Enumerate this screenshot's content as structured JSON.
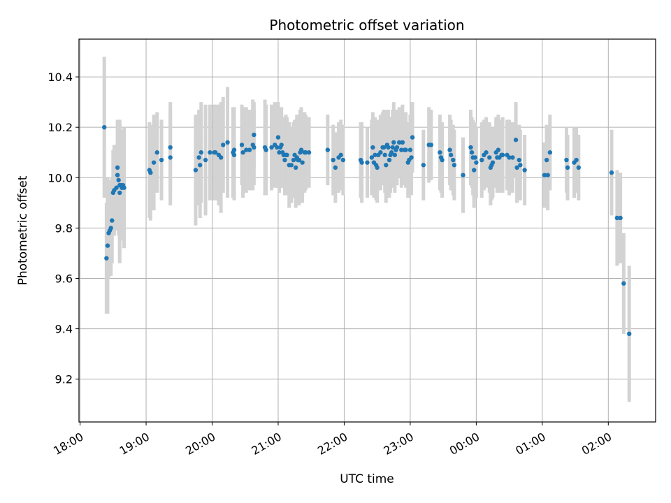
{
  "chart_data": {
    "type": "scatter",
    "title": "Photometric offset variation",
    "xlabel": "UTC time",
    "ylabel": "Photometric offset",
    "x_unit": "UTC clock time (session spans midnight)",
    "xlim": [
      "17:59",
      "02:43"
    ],
    "ylim": [
      9.03,
      10.55
    ],
    "x_ticks": [
      "18:00",
      "19:00",
      "20:00",
      "21:00",
      "22:00",
      "23:00",
      "00:00",
      "01:00",
      "02:00"
    ],
    "y_ticks": [
      "9.2",
      "9.4",
      "9.6",
      "9.8",
      "10.0",
      "10.2",
      "10.4"
    ],
    "y_tick_values": [
      9.2,
      9.4,
      9.6,
      9.8,
      10.0,
      10.2,
      10.4
    ],
    "grid": true,
    "colors": {
      "point": "#1f77b4",
      "errorbar": "#d3d3d3",
      "grid": "#b0b0b0"
    },
    "series": [
      {
        "points": [
          [
            "18:22",
            10.2,
            0.28
          ],
          [
            "18:24",
            9.68,
            0.22
          ],
          [
            "18:25",
            9.73,
            0.27
          ],
          [
            "18:26",
            9.78,
            0.18
          ],
          [
            "18:27",
            9.79,
            0.16
          ],
          [
            "18:28",
            9.8,
            0.19
          ],
          [
            "18:29",
            9.83,
            0.17
          ],
          [
            "18:30",
            9.94,
            0.17
          ],
          [
            "18:31",
            9.95,
            0.18
          ],
          [
            "18:33",
            9.96,
            0.17
          ],
          [
            "18:34",
            10.04,
            0.19
          ],
          [
            "18:34",
            10.01,
            0.2
          ],
          [
            "18:35",
            9.99,
            0.22
          ],
          [
            "18:36",
            9.97,
            0.26
          ],
          [
            "18:36",
            9.94,
            0.28
          ],
          [
            "18:37",
            9.97,
            0.22
          ],
          [
            "18:38",
            9.96,
            0.18
          ],
          [
            "18:39",
            9.97,
            0.2
          ],
          [
            "18:40",
            9.96,
            0.24
          ],
          [
            "19:03",
            10.03,
            0.19
          ],
          [
            "19:04",
            10.02,
            0.19
          ],
          [
            "19:07",
            10.06,
            0.19
          ],
          [
            "19:10",
            10.1,
            0.16
          ],
          [
            "19:14",
            10.07,
            0.16
          ],
          [
            "19:22",
            10.12,
            0.18
          ],
          [
            "19:22",
            10.08,
            0.19
          ],
          [
            "19:45",
            10.03,
            0.22
          ],
          [
            "19:48",
            10.08,
            0.19
          ],
          [
            "19:49",
            10.05,
            0.21
          ],
          [
            "19:50",
            10.1,
            0.2
          ],
          [
            "19:54",
            10.07,
            0.22
          ],
          [
            "19:58",
            10.1,
            0.19
          ],
          [
            "20:02",
            10.1,
            0.19
          ],
          [
            "20:03",
            10.1,
            0.19
          ],
          [
            "20:06",
            10.09,
            0.2
          ],
          [
            "20:08",
            10.08,
            0.22
          ],
          [
            "20:10",
            10.13,
            0.19
          ],
          [
            "20:14",
            10.14,
            0.22
          ],
          [
            "20:19",
            10.1,
            0.18
          ],
          [
            "20:20",
            10.11,
            0.17
          ],
          [
            "20:20",
            10.09,
            0.18
          ],
          [
            "20:27",
            10.13,
            0.16
          ],
          [
            "20:28",
            10.1,
            0.18
          ],
          [
            "20:31",
            10.11,
            0.17
          ],
          [
            "20:34",
            10.11,
            0.16
          ],
          [
            "20:37",
            10.13,
            0.18
          ],
          [
            "20:38",
            10.17,
            0.13
          ],
          [
            "20:38",
            10.12,
            0.15
          ],
          [
            "20:48",
            10.12,
            0.19
          ],
          [
            "20:49",
            10.11,
            0.18
          ],
          [
            "20:54",
            10.12,
            0.17
          ],
          [
            "20:57",
            10.13,
            0.17
          ],
          [
            "20:59",
            10.12,
            0.16
          ],
          [
            "21:00",
            10.16,
            0.14
          ],
          [
            "21:01",
            10.1,
            0.16
          ],
          [
            "21:02",
            10.12,
            0.16
          ],
          [
            "21:03",
            10.13,
            0.15
          ],
          [
            "21:04",
            10.1,
            0.14
          ],
          [
            "21:05",
            10.09,
            0.13
          ],
          [
            "21:06",
            10.07,
            0.14
          ],
          [
            "21:07",
            10.09,
            0.16
          ],
          [
            "21:08",
            10.09,
            0.15
          ],
          [
            "21:10",
            10.05,
            0.17
          ],
          [
            "21:12",
            10.05,
            0.15
          ],
          [
            "21:14",
            10.07,
            0.15
          ],
          [
            "21:15",
            10.09,
            0.14
          ],
          [
            "21:16",
            10.04,
            0.16
          ],
          [
            "21:17",
            10.08,
            0.17
          ],
          [
            "21:18",
            10.07,
            0.17
          ],
          [
            "21:19",
            10.07,
            0.18
          ],
          [
            "21:20",
            10.1,
            0.17
          ],
          [
            "21:21",
            10.11,
            0.17
          ],
          [
            "21:22",
            10.06,
            0.16
          ],
          [
            "21:24",
            10.1,
            0.16
          ],
          [
            "21:25",
            10.1,
            0.15
          ],
          [
            "21:28",
            10.1,
            0.14
          ],
          [
            "21:45",
            10.11,
            0.14
          ],
          [
            "21:50",
            10.07,
            0.14
          ],
          [
            "21:52",
            10.04,
            0.14
          ],
          [
            "21:55",
            10.08,
            0.14
          ],
          [
            "21:57",
            10.09,
            0.14
          ],
          [
            "21:59",
            10.07,
            0.14
          ],
          [
            "22:15",
            10.07,
            0.15
          ],
          [
            "22:16",
            10.06,
            0.16
          ],
          [
            "22:21",
            10.06,
            0.14
          ],
          [
            "22:25",
            10.08,
            0.15
          ],
          [
            "22:26",
            10.12,
            0.14
          ],
          [
            "22:27",
            10.06,
            0.14
          ],
          [
            "22:28",
            10.09,
            0.15
          ],
          [
            "22:29",
            10.05,
            0.14
          ],
          [
            "22:30",
            10.04,
            0.14
          ],
          [
            "22:31",
            10.09,
            0.14
          ],
          [
            "22:33",
            10.1,
            0.15
          ],
          [
            "22:35",
            10.12,
            0.14
          ],
          [
            "22:36",
            10.12,
            0.15
          ],
          [
            "22:37",
            10.09,
            0.15
          ],
          [
            "22:38",
            10.05,
            0.15
          ],
          [
            "22:39",
            10.13,
            0.14
          ],
          [
            "22:40",
            10.12,
            0.15
          ],
          [
            "22:41",
            10.07,
            0.15
          ],
          [
            "22:42",
            10.09,
            0.15
          ],
          [
            "22:43",
            10.1,
            0.14
          ],
          [
            "22:44",
            10.12,
            0.15
          ],
          [
            "22:45",
            10.14,
            0.16
          ],
          [
            "22:46",
            10.09,
            0.15
          ],
          [
            "22:47",
            10.11,
            0.14
          ],
          [
            "22:48",
            10.12,
            0.15
          ],
          [
            "22:50",
            10.14,
            0.14
          ],
          [
            "22:52",
            10.11,
            0.15
          ],
          [
            "22:53",
            10.14,
            0.15
          ],
          [
            "22:55",
            10.11,
            0.14
          ],
          [
            "22:56",
            10.11,
            0.15
          ],
          [
            "22:58",
            10.06,
            0.14
          ],
          [
            "22:59",
            10.07,
            0.15
          ],
          [
            "23:00",
            10.11,
            0.14
          ],
          [
            "23:01",
            10.08,
            0.15
          ],
          [
            "23:02",
            10.16,
            0.14
          ],
          [
            "23:12",
            10.05,
            0.14
          ],
          [
            "23:17",
            10.13,
            0.15
          ],
          [
            "23:19",
            10.13,
            0.14
          ],
          [
            "23:27",
            10.1,
            0.15
          ],
          [
            "23:28",
            10.08,
            0.14
          ],
          [
            "23:29",
            10.07,
            0.15
          ],
          [
            "23:36",
            10.11,
            0.14
          ],
          [
            "23:37",
            10.09,
            0.14
          ],
          [
            "23:39",
            10.07,
            0.14
          ],
          [
            "23:40",
            10.05,
            0.14
          ],
          [
            "23:48",
            10.01,
            0.15
          ],
          [
            "23:55",
            10.12,
            0.15
          ],
          [
            "23:56",
            10.1,
            0.14
          ],
          [
            "23:57",
            10.08,
            0.15
          ],
          [
            "23:58",
            10.03,
            0.15
          ],
          [
            "23:59",
            10.08,
            0.14
          ],
          [
            "00:00",
            10.06,
            0.14
          ],
          [
            "00:05",
            10.07,
            0.15
          ],
          [
            "00:07",
            10.09,
            0.14
          ],
          [
            "00:09",
            10.1,
            0.14
          ],
          [
            "00:12",
            10.08,
            0.14
          ],
          [
            "00:13",
            10.04,
            0.15
          ],
          [
            "00:14",
            10.05,
            0.14
          ],
          [
            "00:15",
            10.06,
            0.14
          ],
          [
            "00:18",
            10.1,
            0.14
          ],
          [
            "00:19",
            10.08,
            0.14
          ],
          [
            "00:20",
            10.11,
            0.14
          ],
          [
            "00:21",
            10.08,
            0.14
          ],
          [
            "00:23",
            10.09,
            0.14
          ],
          [
            "00:24",
            10.09,
            0.15
          ],
          [
            "00:28",
            10.09,
            0.14
          ],
          [
            "00:30",
            10.08,
            0.15
          ],
          [
            "00:33",
            10.08,
            0.14
          ],
          [
            "00:36",
            10.15,
            0.15
          ],
          [
            "00:37",
            10.04,
            0.14
          ],
          [
            "00:39",
            10.07,
            0.14
          ],
          [
            "00:40",
            10.05,
            0.14
          ],
          [
            "00:44",
            10.03,
            0.14
          ],
          [
            "01:02",
            10.01,
            0.13
          ],
          [
            "01:04",
            10.07,
            0.14
          ],
          [
            "01:05",
            10.01,
            0.14
          ],
          [
            "01:07",
            10.1,
            0.15
          ],
          [
            "01:22",
            10.07,
            0.13
          ],
          [
            "01:23",
            10.04,
            0.13
          ],
          [
            "01:29",
            10.06,
            0.14
          ],
          [
            "01:31",
            10.07,
            0.13
          ],
          [
            "01:33",
            10.04,
            0.13
          ],
          [
            "02:03",
            10.02,
            0.17
          ],
          [
            "02:08",
            9.84,
            0.19
          ],
          [
            "02:11",
            9.84,
            0.18
          ],
          [
            "02:14",
            9.58,
            0.2
          ],
          [
            "02:19",
            9.38,
            0.27
          ]
        ]
      }
    ]
  }
}
